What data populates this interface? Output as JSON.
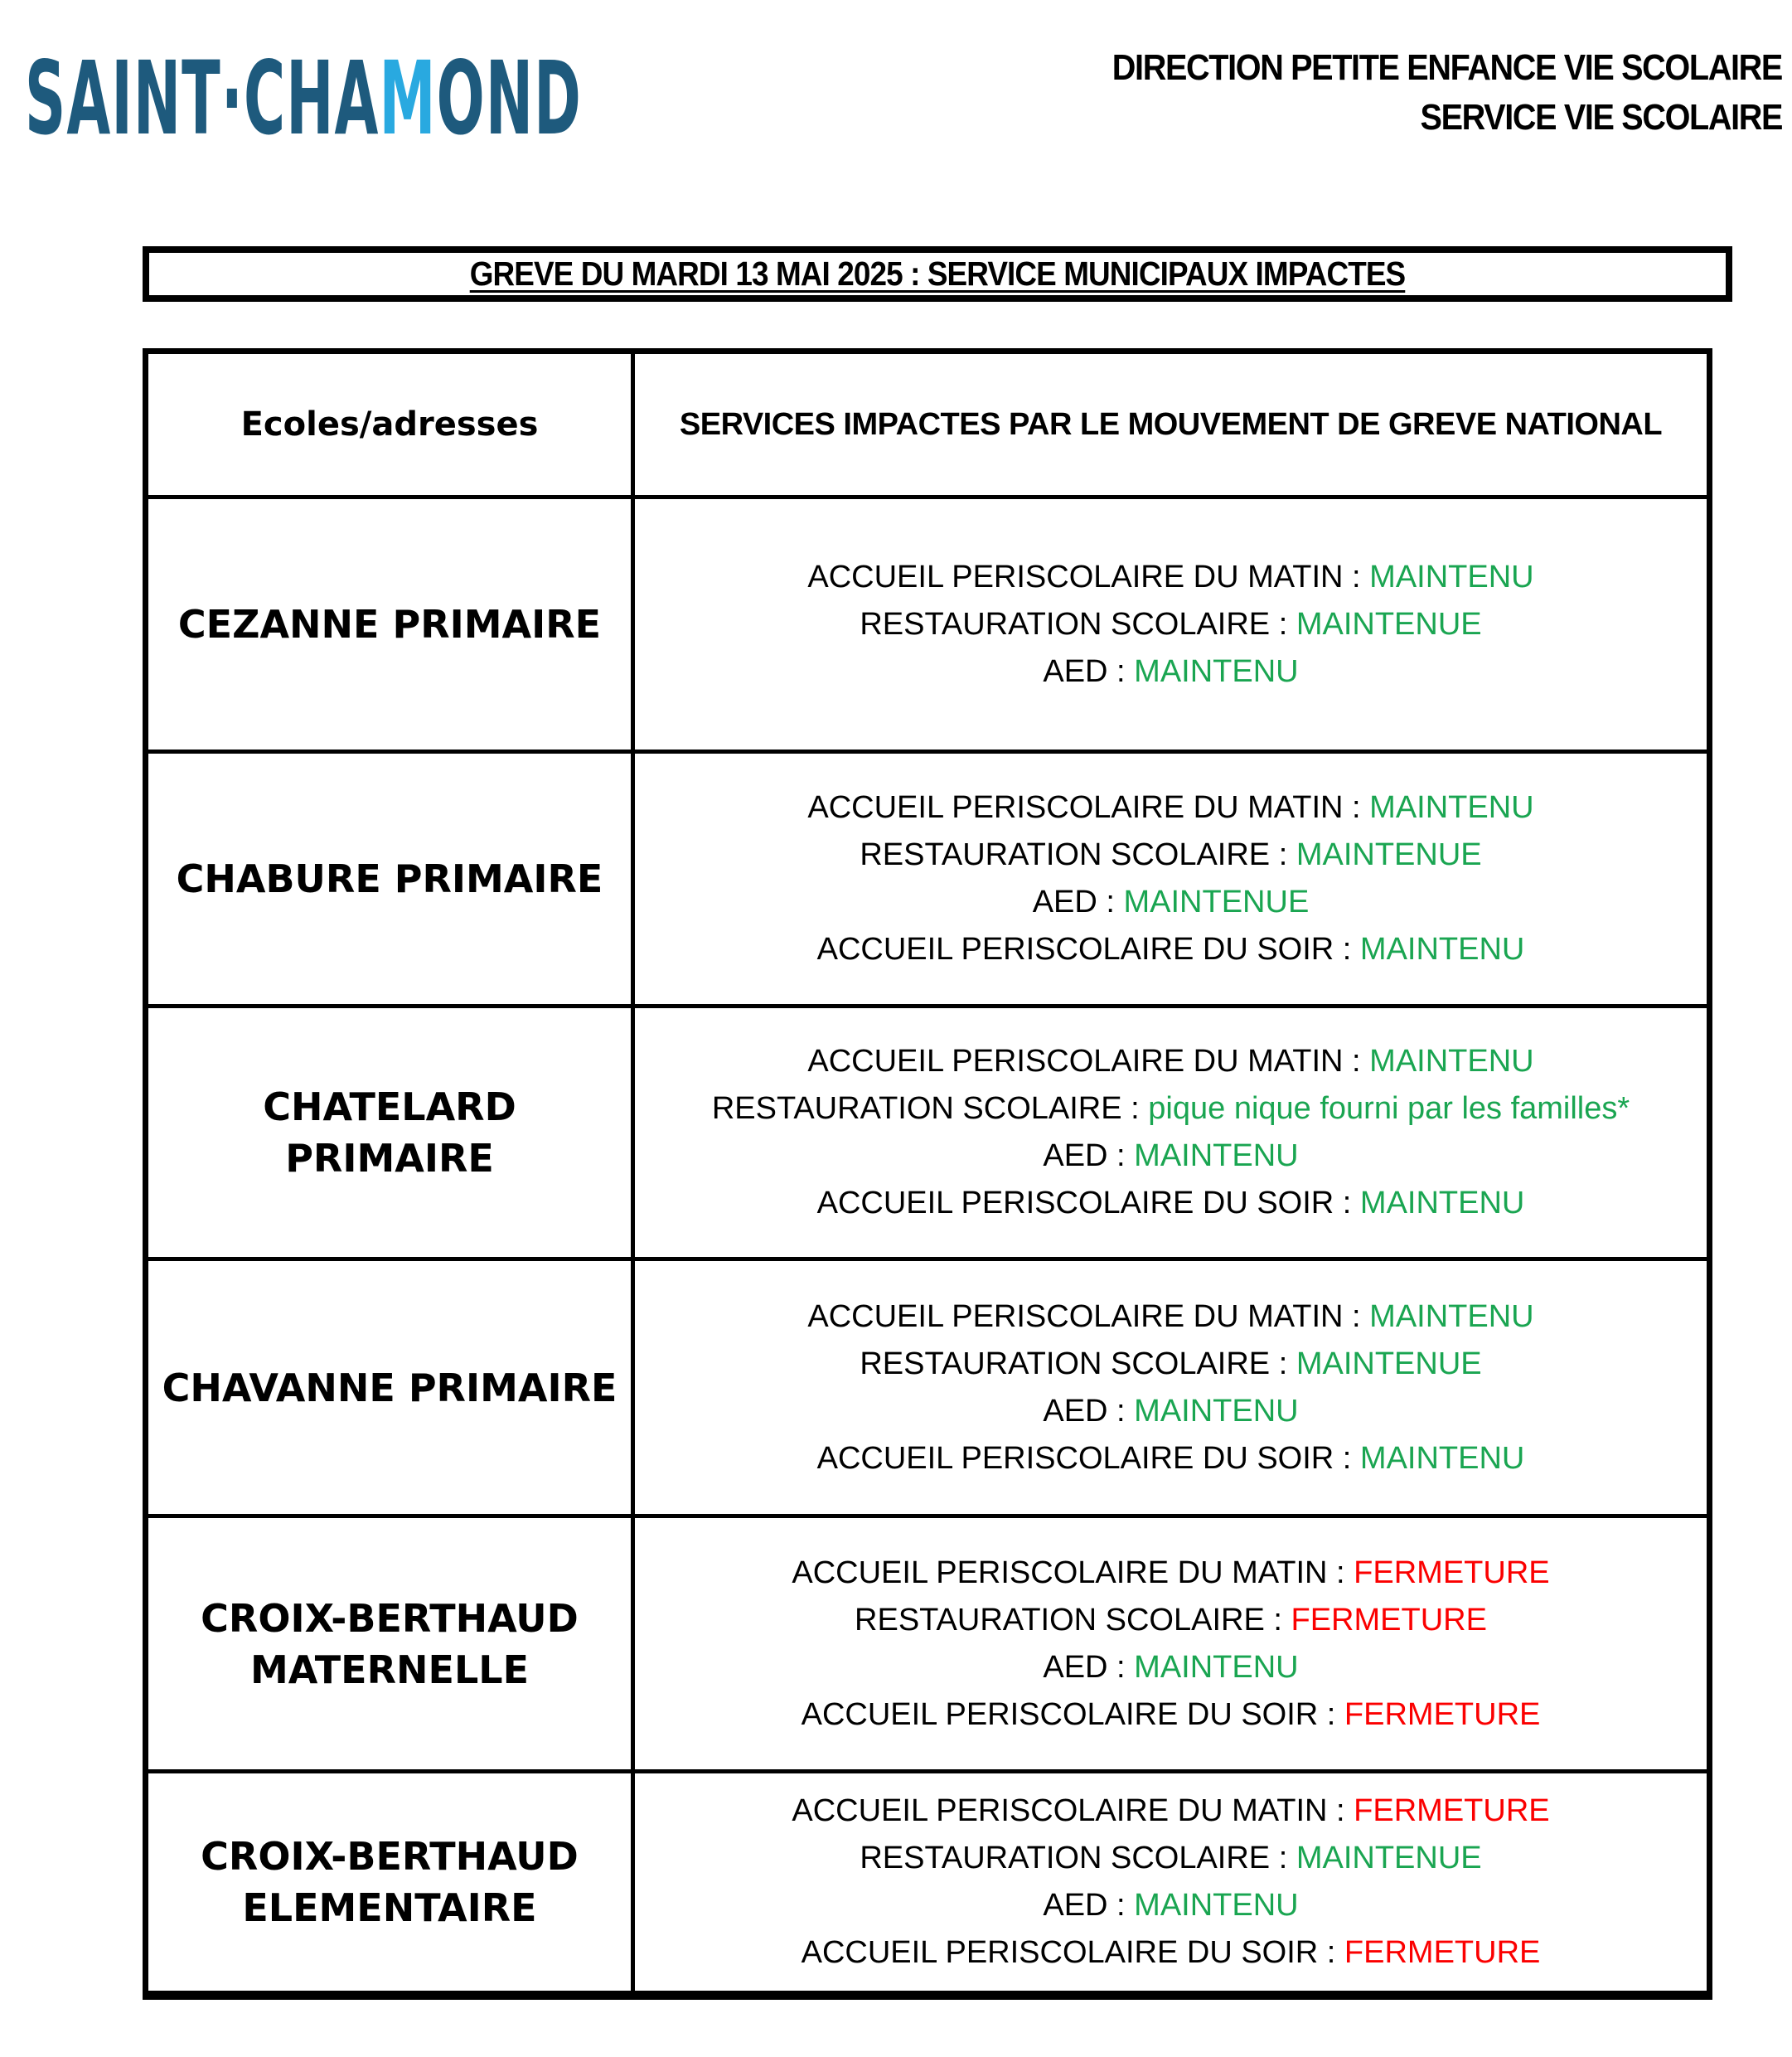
{
  "colors": {
    "green": "#1aa551",
    "red": "#fb0000",
    "logoDark": "#1e5a7d",
    "logoLight": "#29a9e0"
  },
  "logo": {
    "part1": "SAINT·CHA",
    "accent": "M",
    "part2": "OND"
  },
  "letterhead": {
    "line1": "DIRECTION PETITE ENFANCE VIE SCOLAIRE",
    "line2": "SERVICE VIE SCOLAIRE"
  },
  "title": "GREVE DU MARDI 13 MAI 2025 : SERVICE MUNICIPAUX IMPACTES",
  "table": {
    "header": {
      "col1": "Ecoles/adresses",
      "col2": "SERVICES IMPACTES PAR LE MOUVEMENT DE GREVE NATIONAL"
    },
    "rows": [
      {
        "school": "CEZANNE PRIMAIRE",
        "services": [
          {
            "label": "ACCUEIL PERISCOLAIRE DU MATIN :",
            "value": "MAINTENU",
            "status": "green"
          },
          {
            "label": "RESTAURATION SCOLAIRE :",
            "value": "MAINTENUE",
            "status": "green"
          },
          {
            "label": "AED :",
            "value": "MAINTENU",
            "status": "green"
          }
        ]
      },
      {
        "school": "CHABURE PRIMAIRE",
        "services": [
          {
            "label": "ACCUEIL PERISCOLAIRE DU MATIN :",
            "value": "MAINTENU",
            "status": "green"
          },
          {
            "label": "RESTAURATION SCOLAIRE :",
            "value": "MAINTENUE",
            "status": "green"
          },
          {
            "label": "AED :",
            "value": "MAINTENUE",
            "status": "green"
          },
          {
            "label": "ACCUEIL PERISCOLAIRE DU SOIR :",
            "value": "MAINTENU",
            "status": "green"
          }
        ]
      },
      {
        "school": "CHATELARD PRIMAIRE",
        "services": [
          {
            "label": "ACCUEIL PERISCOLAIRE DU MATIN :",
            "value": "MAINTENU",
            "status": "green"
          },
          {
            "label": "RESTAURATION SCOLAIRE :",
            "value": "pique nique fourni par les familles*",
            "status": "green"
          },
          {
            "label": "AED :",
            "value": "MAINTENU",
            "status": "green"
          },
          {
            "label": "ACCUEIL PERISCOLAIRE DU SOIR :",
            "value": "MAINTENU",
            "status": "green"
          }
        ]
      },
      {
        "school": "CHAVANNE PRIMAIRE",
        "services": [
          {
            "label": "ACCUEIL PERISCOLAIRE DU MATIN :",
            "value": "MAINTENU",
            "status": "green"
          },
          {
            "label": "RESTAURATION SCOLAIRE :",
            "value": "MAINTENUE",
            "status": "green"
          },
          {
            "label": "AED :",
            "value": "MAINTENU",
            "status": "green"
          },
          {
            "label": "ACCUEIL PERISCOLAIRE DU SOIR :",
            "value": "MAINTENU",
            "status": "green"
          }
        ]
      },
      {
        "school": "CROIX-BERTHAUD MATERNELLE",
        "services": [
          {
            "label": "ACCUEIL PERISCOLAIRE DU MATIN :",
            "value": "FERMETURE",
            "status": "red"
          },
          {
            "label": "RESTAURATION SCOLAIRE :",
            "value": "FERMETURE",
            "status": "red"
          },
          {
            "label": "AED :",
            "value": "MAINTENU",
            "status": "green"
          },
          {
            "label": "ACCUEIL PERISCOLAIRE DU SOIR :",
            "value": "FERMETURE",
            "status": "red"
          }
        ]
      },
      {
        "school": "CROIX-BERTHAUD ELEMENTAIRE",
        "services": [
          {
            "label": "ACCUEIL PERISCOLAIRE DU MATIN :",
            "value": "FERMETURE",
            "status": "red"
          },
          {
            "label": "RESTAURATION SCOLAIRE :",
            "value": "MAINTENUE",
            "status": "green"
          },
          {
            "label": "AED :",
            "value": "MAINTENU",
            "status": "green"
          },
          {
            "label": "ACCUEIL PERISCOLAIRE DU SOIR :",
            "value": "FERMETURE",
            "status": "red"
          }
        ]
      }
    ]
  }
}
